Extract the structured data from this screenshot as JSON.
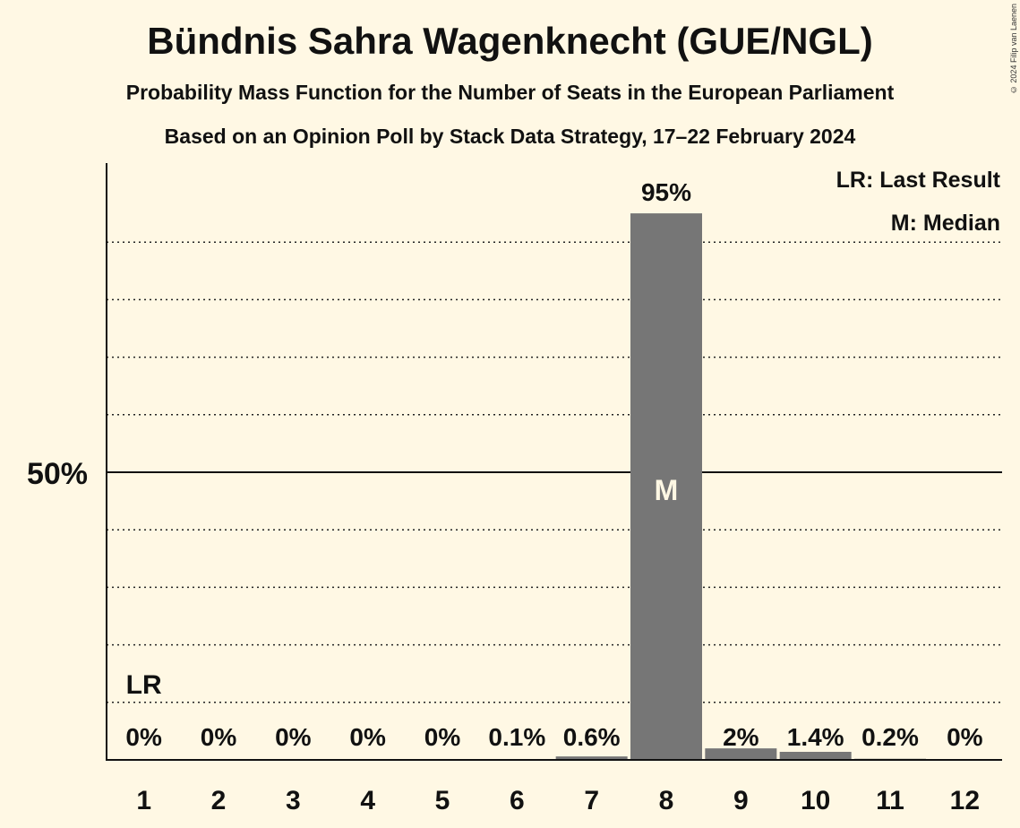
{
  "header": {
    "title": "Bündnis Sahra Wagenknecht (GUE/NGL)",
    "subtitle": "Probability Mass Function for the Number of Seats in the European Parliament",
    "source": "Based on an Opinion Poll by Stack Data Strategy, 17–22 February 2024",
    "copyright": "© 2024 Filip van Laenen"
  },
  "legend": {
    "lr": "LR: Last Result",
    "median": "M: Median"
  },
  "colors": {
    "background": "#FFF8E4",
    "bar": "#767676",
    "text": "#111111",
    "median_text": "#FFF8E4"
  },
  "chart_data": {
    "type": "bar",
    "title": "Bündnis Sahra Wagenknecht (GUE/NGL)",
    "xlabel": "",
    "ylabel": "",
    "categories": [
      "1",
      "2",
      "3",
      "4",
      "5",
      "6",
      "7",
      "8",
      "9",
      "10",
      "11",
      "12"
    ],
    "values": [
      0,
      0,
      0,
      0,
      0,
      0.1,
      0.6,
      95,
      2,
      1.4,
      0.2,
      0
    ],
    "value_labels": [
      "0%",
      "0%",
      "0%",
      "0%",
      "0%",
      "0.1%",
      "0.6%",
      "95%",
      "2%",
      "1.4%",
      "0.2%",
      "0%"
    ],
    "ylim": [
      0,
      104
    ],
    "y_tick_labels": [
      {
        "value": 50,
        "label": "50%"
      }
    ],
    "gridlines_dotted": [
      10,
      20,
      30,
      40,
      60,
      70,
      80,
      90
    ],
    "median_seat": "8",
    "median_marker": "M",
    "last_result_seat": "1",
    "last_result_marker": "LR",
    "legend_position": "top-right"
  }
}
